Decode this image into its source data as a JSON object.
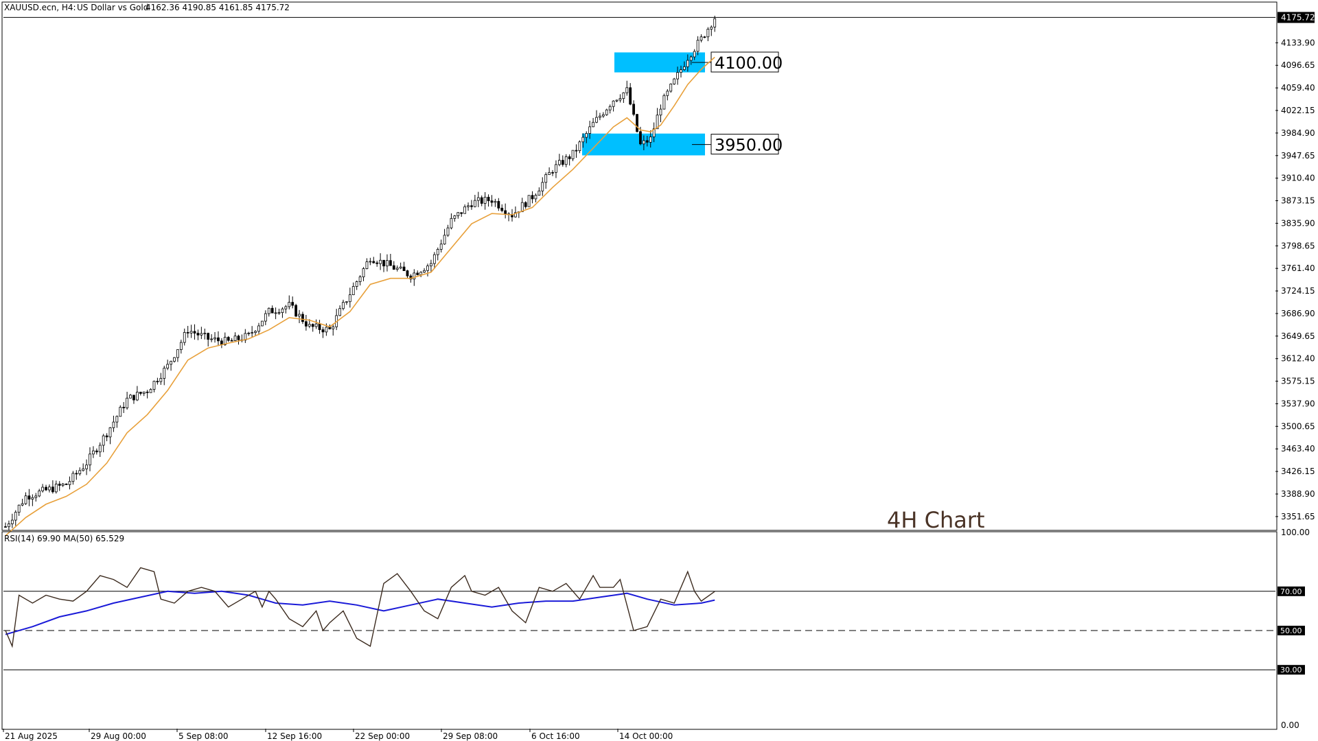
{
  "header": {
    "symbol": "XAUUSD.ecn, H4:",
    "description": "US Dollar vs Gold",
    "ohlc": "4162.36 4190.85 4161.85 4175.72"
  },
  "watermark": "4H Chart",
  "colors": {
    "background": "#ffffff",
    "candle": "#000000",
    "ma_price": "#e8a03a",
    "zone": "#00bfff",
    "rsi_line": "#3b2a1e",
    "rsi_ma": "#1a1ad8",
    "watermark": "#4a3326"
  },
  "chart_data": [
    {
      "type": "candlestick",
      "title": "XAUUSD.ecn, H4: US Dollar vs Gold",
      "ylim": [
        3330,
        4200
      ],
      "y_ticks": [
        "4133.90",
        "4096.65",
        "4059.40",
        "4022.15",
        "3984.90",
        "3947.65",
        "3910.40",
        "3873.15",
        "3835.90",
        "3798.65",
        "3761.40",
        "3724.15",
        "3686.90",
        "3649.65",
        "3612.40",
        "3575.15",
        "3537.90",
        "3500.65",
        "3463.40",
        "3426.15",
        "3388.90",
        "3351.65"
      ],
      "x_tick_labels": [
        "21 Aug 2025",
        "29 Aug 00:00",
        "5 Sep 08:00",
        "12 Sep 16:00",
        "22 Sep 00:00",
        "29 Sep 08:00",
        "6 Oct 16:00",
        "14 Oct 00:00"
      ],
      "current_price": "4175.72",
      "price_path": [
        [
          0,
          3335
        ],
        [
          6,
          3385
        ],
        [
          12,
          3395
        ],
        [
          18,
          3405
        ],
        [
          24,
          3440
        ],
        [
          30,
          3490
        ],
        [
          36,
          3545
        ],
        [
          42,
          3560
        ],
        [
          48,
          3600
        ],
        [
          54,
          3660
        ],
        [
          60,
          3645
        ],
        [
          66,
          3640
        ],
        [
          72,
          3650
        ],
        [
          78,
          3690
        ],
        [
          84,
          3700
        ],
        [
          90,
          3665
        ],
        [
          96,
          3660
        ],
        [
          102,
          3720
        ],
        [
          108,
          3780
        ],
        [
          114,
          3765
        ],
        [
          120,
          3750
        ],
        [
          126,
          3770
        ],
        [
          132,
          3840
        ],
        [
          138,
          3870
        ],
        [
          144,
          3875
        ],
        [
          150,
          3850
        ],
        [
          156,
          3880
        ],
        [
          162,
          3925
        ],
        [
          168,
          3950
        ],
        [
          174,
          4000
        ],
        [
          180,
          4040
        ],
        [
          184,
          4055
        ],
        [
          188,
          3965
        ],
        [
          191,
          3975
        ],
        [
          194,
          4030
        ],
        [
          198,
          4070
        ],
        [
          202,
          4110
        ],
        [
          206,
          4140
        ],
        [
          210,
          4175.72
        ]
      ],
      "ma_path": [
        [
          0,
          3320
        ],
        [
          6,
          3350
        ],
        [
          12,
          3372
        ],
        [
          18,
          3385
        ],
        [
          24,
          3405
        ],
        [
          30,
          3440
        ],
        [
          36,
          3490
        ],
        [
          42,
          3520
        ],
        [
          48,
          3560
        ],
        [
          54,
          3610
        ],
        [
          60,
          3630
        ],
        [
          66,
          3638
        ],
        [
          72,
          3645
        ],
        [
          78,
          3660
        ],
        [
          84,
          3680
        ],
        [
          90,
          3676
        ],
        [
          96,
          3665
        ],
        [
          102,
          3690
        ],
        [
          108,
          3735
        ],
        [
          114,
          3745
        ],
        [
          120,
          3745
        ],
        [
          126,
          3755
        ],
        [
          132,
          3795
        ],
        [
          138,
          3835
        ],
        [
          144,
          3852
        ],
        [
          150,
          3850
        ],
        [
          156,
          3862
        ],
        [
          162,
          3895
        ],
        [
          168,
          3925
        ],
        [
          174,
          3960
        ],
        [
          180,
          3995
        ],
        [
          184,
          4010
        ],
        [
          188,
          3990
        ],
        [
          191,
          3987
        ],
        [
          194,
          3998
        ],
        [
          198,
          4030
        ],
        [
          202,
          4065
        ],
        [
          206,
          4090
        ],
        [
          210,
          4110
        ]
      ],
      "zones": [
        {
          "label": "4100.00",
          "from": 4085,
          "to": 4118
        },
        {
          "label": "3950.00",
          "from": 3948,
          "to": 3984
        }
      ]
    },
    {
      "type": "line",
      "title": "RSI(14) 69.90 MA(50) 65.529",
      "ylim": [
        0,
        100
      ],
      "levels": [
        "70.00",
        "50.00",
        "30.00"
      ],
      "y_tick_top": "100.00",
      "y_tick_bottom": "0.00",
      "series": [
        {
          "name": "RSI(14)",
          "values_path": [
            [
              0,
              50
            ],
            [
              2,
              42
            ],
            [
              4,
              68
            ],
            [
              8,
              64
            ],
            [
              12,
              68
            ],
            [
              16,
              66
            ],
            [
              20,
              65
            ],
            [
              24,
              70
            ],
            [
              28,
              78
            ],
            [
              32,
              76
            ],
            [
              36,
              72
            ],
            [
              40,
              82
            ],
            [
              44,
              80
            ],
            [
              46,
              66
            ],
            [
              50,
              64
            ],
            [
              54,
              70
            ],
            [
              58,
              72
            ],
            [
              62,
              70
            ],
            [
              66,
              62
            ],
            [
              70,
              66
            ],
            [
              74,
              70
            ],
            [
              76,
              62
            ],
            [
              78,
              70
            ],
            [
              80,
              66
            ],
            [
              84,
              56
            ],
            [
              88,
              52
            ],
            [
              92,
              60
            ],
            [
              94,
              50
            ],
            [
              96,
              54
            ],
            [
              100,
              60
            ],
            [
              104,
              46
            ],
            [
              108,
              42
            ],
            [
              112,
              74
            ],
            [
              116,
              79
            ],
            [
              120,
              70
            ],
            [
              124,
              60
            ],
            [
              128,
              56
            ],
            [
              132,
              72
            ],
            [
              136,
              78
            ],
            [
              138,
              70
            ],
            [
              142,
              68
            ],
            [
              146,
              72
            ],
            [
              150,
              60
            ],
            [
              154,
              54
            ],
            [
              158,
              72
            ],
            [
              162,
              70
            ],
            [
              166,
              74
            ],
            [
              170,
              66
            ],
            [
              174,
              78
            ],
            [
              176,
              72
            ],
            [
              180,
              72
            ],
            [
              182,
              76
            ],
            [
              186,
              50
            ],
            [
              190,
              52
            ],
            [
              194,
              66
            ],
            [
              198,
              64
            ],
            [
              202,
              80
            ],
            [
              204,
              70
            ],
            [
              206,
              65
            ],
            [
              210,
              69.9
            ]
          ]
        },
        {
          "name": "MA(50)",
          "values_path": [
            [
              0,
              48
            ],
            [
              8,
              52
            ],
            [
              16,
              57
            ],
            [
              24,
              60
            ],
            [
              32,
              64
            ],
            [
              40,
              67
            ],
            [
              48,
              70
            ],
            [
              56,
              69
            ],
            [
              64,
              70
            ],
            [
              72,
              68
            ],
            [
              80,
              64
            ],
            [
              88,
              63
            ],
            [
              96,
              65
            ],
            [
              104,
              63
            ],
            [
              112,
              60
            ],
            [
              120,
              63
            ],
            [
              128,
              66
            ],
            [
              136,
              64
            ],
            [
              144,
              62
            ],
            [
              152,
              64
            ],
            [
              160,
              65
            ],
            [
              168,
              65
            ],
            [
              176,
              67
            ],
            [
              184,
              69
            ],
            [
              190,
              66
            ],
            [
              198,
              63
            ],
            [
              206,
              64
            ],
            [
              210,
              65.529
            ]
          ]
        }
      ]
    }
  ]
}
